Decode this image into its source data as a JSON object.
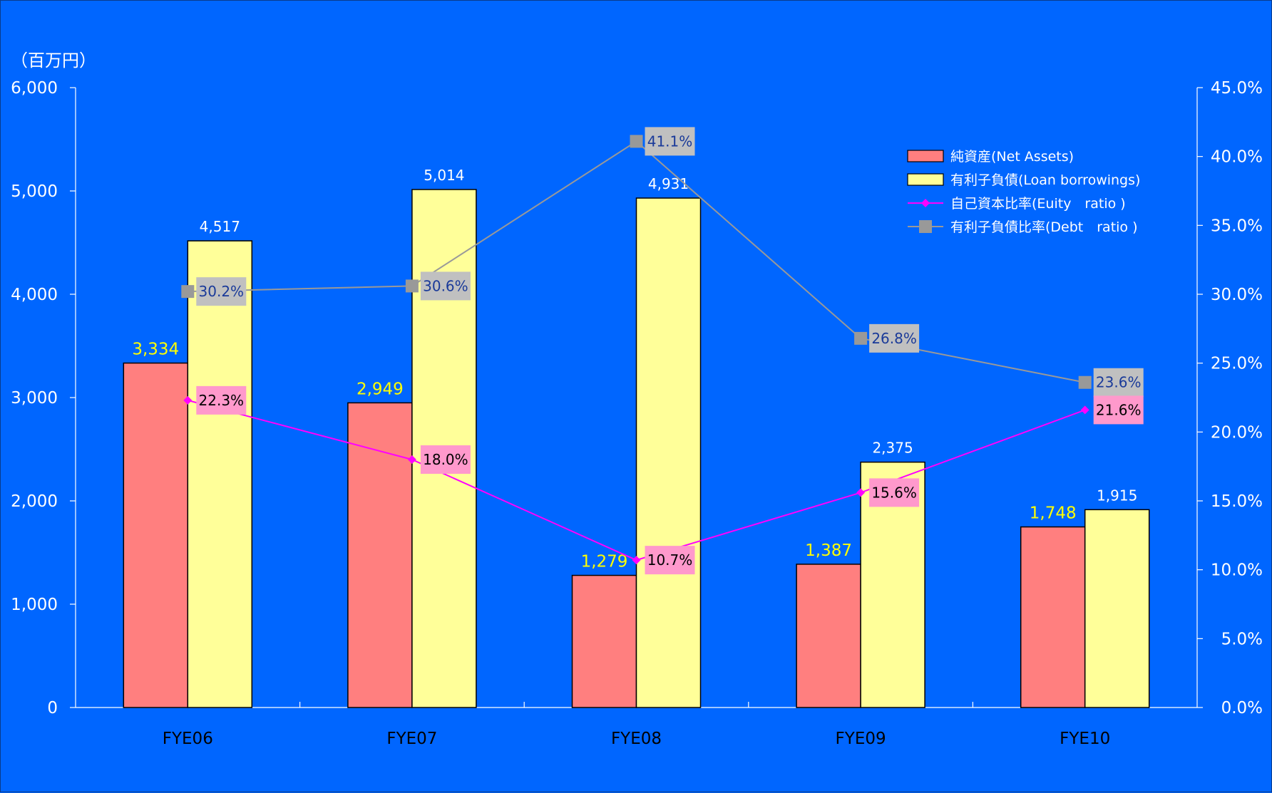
{
  "chart_data": {
    "type": "bar",
    "categories": [
      "FYE06",
      "FYE07",
      "FYE08",
      "FYE09",
      "FYE10"
    ],
    "y_unit_label": "（百万円）",
    "ylim": [
      0,
      6000
    ],
    "yticks": [
      "0",
      "1,000",
      "2,000",
      "3,000",
      "4,000",
      "5,000",
      "6,000"
    ],
    "y2lim": [
      0,
      45
    ],
    "y2ticks": [
      "0.0%",
      "5.0%",
      "10.0%",
      "15.0%",
      "20.0%",
      "25.0%",
      "30.0%",
      "35.0%",
      "40.0%",
      "45.0%"
    ],
    "legend_position": "top-right",
    "series": [
      {
        "name": "純資産(Net Assets)",
        "kind": "bar",
        "axis": "left",
        "color": "#ff7f7f",
        "values": [
          3334,
          2949,
          1279,
          1387,
          1748
        ],
        "labels": [
          "3,334",
          "2,949",
          "1,279",
          "1,387",
          "1,748"
        ]
      },
      {
        "name": "有利子負債(Loan borrowings)",
        "kind": "bar",
        "axis": "left",
        "color": "#ffff99",
        "values": [
          4517,
          5014,
          4931,
          2375,
          1915
        ],
        "labels": [
          "4,517",
          "5,014",
          "4,931",
          "2,375",
          "1,915"
        ]
      },
      {
        "name": "自己資本比率(Euity　ratio )",
        "kind": "line",
        "axis": "right",
        "color": "#ff00ff",
        "marker": "diamond",
        "values": [
          22.3,
          18.0,
          10.7,
          15.6,
          21.6
        ],
        "labels": [
          "22.3%",
          "18.0%",
          "10.7%",
          "15.6%",
          "21.6%"
        ]
      },
      {
        "name": "有利子負債比率(Debt　ratio )",
        "kind": "line",
        "axis": "right",
        "color": "#999999",
        "marker": "square",
        "values": [
          30.2,
          30.6,
          41.1,
          26.8,
          23.6
        ],
        "labels": [
          "30.2%",
          "30.6%",
          "41.1%",
          "26.8%",
          "23.6%"
        ]
      }
    ]
  }
}
